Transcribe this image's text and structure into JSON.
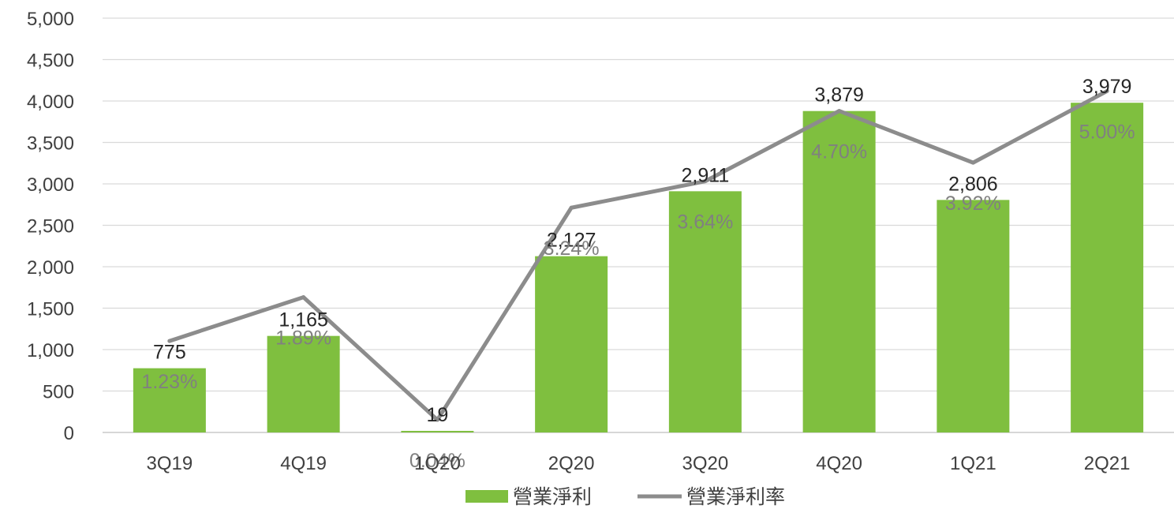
{
  "chart_data": {
    "type": "bar",
    "categories": [
      "3Q19",
      "4Q19",
      "1Q20",
      "2Q20",
      "3Q20",
      "4Q20",
      "1Q21",
      "2Q21"
    ],
    "series": [
      {
        "name": "營業淨利",
        "type": "bar",
        "values": [
          775,
          1165,
          19,
          2127,
          2911,
          3879,
          2806,
          3979
        ],
        "labels": [
          "775",
          "1,165",
          "19",
          "2,127",
          "2,911",
          "3,879",
          "2,806",
          "3,979"
        ],
        "color": "#7fbf3f"
      },
      {
        "name": "營業淨利率",
        "type": "line",
        "values": [
          1.23,
          1.89,
          0.04,
          3.24,
          3.64,
          4.7,
          3.92,
          5.0
        ],
        "labels": [
          "1.23%",
          "1.89%",
          "0.04%",
          "3.24%",
          "3.64%",
          "4.70%",
          "3.92%",
          "5.00%"
        ],
        "color": "#8c8c8c"
      }
    ],
    "y_ticks": [
      "0",
      "500",
      "1,000",
      "1,500",
      "2,000",
      "2,500",
      "3,000",
      "3,500",
      "4,000",
      "4,500",
      "5,000"
    ],
    "ylim": [
      0,
      5000
    ],
    "grid": true,
    "legend": "bottom"
  }
}
